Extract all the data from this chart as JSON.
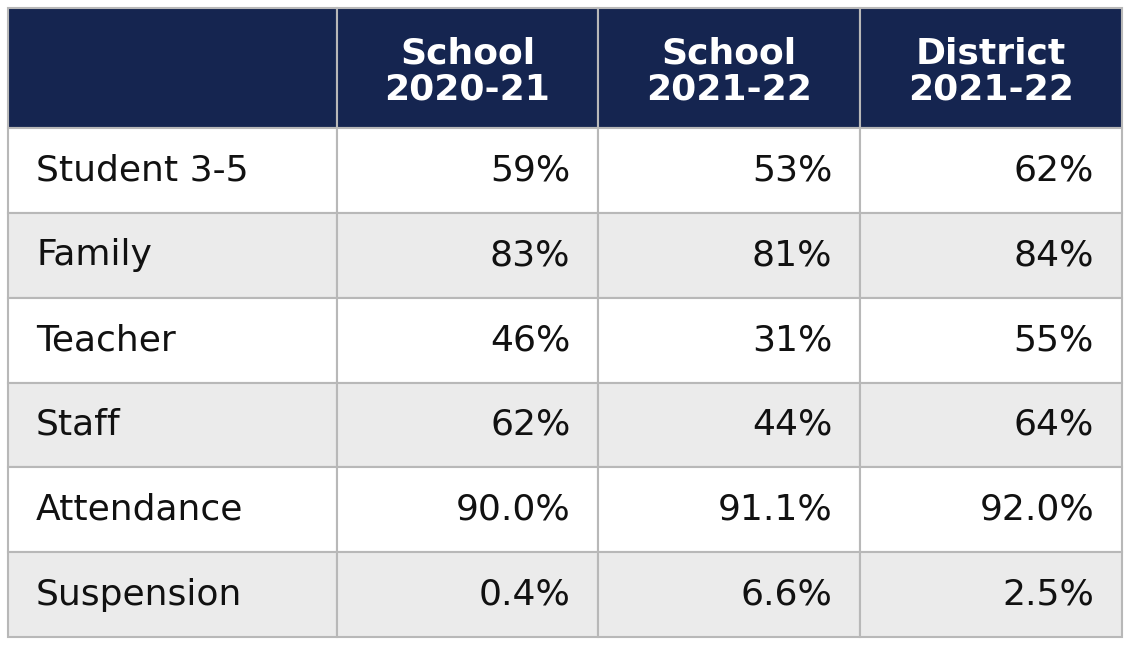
{
  "header_bg_color": "#152550",
  "header_text_color": "#ffffff",
  "row_colors": [
    "#ffffff",
    "#ebebeb"
  ],
  "cell_text_color": "#111111",
  "col_headers": [
    [
      "School",
      "2020-21"
    ],
    [
      "School",
      "2021-22"
    ],
    [
      "District",
      "2021-22"
    ]
  ],
  "rows": [
    [
      "Student 3-5",
      "59%",
      "53%",
      "62%"
    ],
    [
      "Family",
      "83%",
      "81%",
      "84%"
    ],
    [
      "Teacher",
      "46%",
      "31%",
      "55%"
    ],
    [
      "Staff",
      "62%",
      "44%",
      "64%"
    ],
    [
      "Attendance",
      "90.0%",
      "91.1%",
      "92.0%"
    ],
    [
      "Suspension",
      "0.4%",
      "6.6%",
      "2.5%"
    ]
  ],
  "figure_width": 11.3,
  "figure_height": 6.45,
  "figure_bg": "#ffffff",
  "border_color": "#b8b8b8",
  "border_lw": 1.5,
  "header_fontsize": 26,
  "data_fontsize": 26,
  "label_fontsize": 26
}
